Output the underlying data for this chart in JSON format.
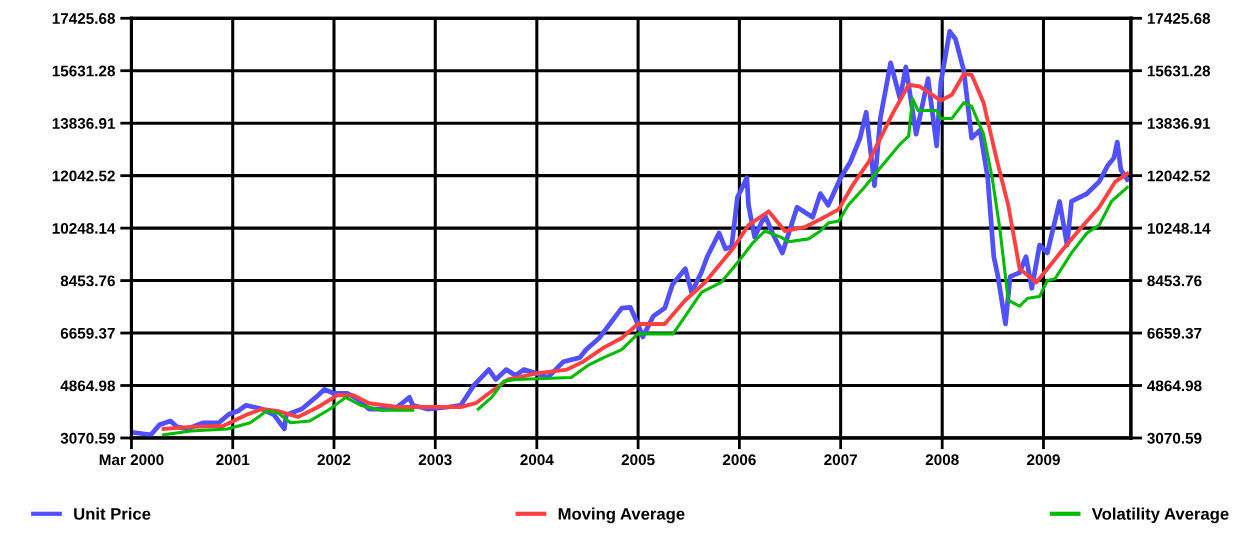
{
  "chart_data": {
    "type": "line",
    "xlim": [
      "2000-03-01",
      "2010-01-10"
    ],
    "xticks": [
      {
        "value": "2000-03-01",
        "label": "Mar 2000"
      },
      {
        "value": "2001-03-01",
        "label": "2001"
      },
      {
        "value": "2002-03-01",
        "label": "2002"
      },
      {
        "value": "2003-03-01",
        "label": "2003"
      },
      {
        "value": "2004-03-01",
        "label": "2004"
      },
      {
        "value": "2005-03-01",
        "label": "2005"
      },
      {
        "value": "2006-03-01",
        "label": "2006"
      },
      {
        "value": "2007-03-01",
        "label": "2007"
      },
      {
        "value": "2008-03-01",
        "label": "2008"
      },
      {
        "value": "2009-03-01",
        "label": "2009"
      }
    ],
    "ylim": [
      3070.59,
      17425.68
    ],
    "yticks": [
      3070.59,
      4864.98,
      6659.37,
      8453.76,
      10248.14,
      12042.52,
      13836.91,
      15631.28,
      17425.68
    ],
    "y2lim": [
      3070.59,
      17425.68
    ],
    "y2ticks": [
      3070.59,
      4864.98,
      6659.37,
      8453.76,
      10248.14,
      12042.52,
      13836.91,
      15631.28,
      17425.68
    ],
    "grid": true,
    "legend": "bottom",
    "marker": "none",
    "line_style": "solid",
    "series": [
      {
        "name": "Unit Price",
        "color": "#5050ff",
        "x": [
          "2000-03-15",
          "2000-05-10",
          "2000-06-10",
          "2000-07-20",
          "2000-08-12",
          "2000-09-18",
          "2000-11-15",
          "2001-01-10",
          "2001-02-15",
          "2001-03-20",
          "2001-04-18",
          "2001-06-15",
          "2001-07-28",
          "2001-09-03",
          "2001-09-10",
          "2001-11-05",
          "2002-01-03",
          "2002-01-25",
          "2002-02-28",
          "2002-04-18",
          "2002-05-25",
          "2002-07-05",
          "2002-09-01",
          "2002-10-15",
          "2002-11-28",
          "2002-12-10",
          "2003-02-01",
          "2003-04-18",
          "2003-06-01",
          "2003-07-18",
          "2003-09-10",
          "2003-10-05",
          "2003-11-12",
          "2003-12-15",
          "2004-01-15",
          "2004-02-28",
          "2004-04-10",
          "2004-06-05",
          "2004-08-03",
          "2004-08-25",
          "2004-10-12",
          "2005-01-01",
          "2005-02-01",
          "2005-02-28",
          "2005-03-18",
          "2005-04-25",
          "2005-06-05",
          "2005-07-03",
          "2005-08-18",
          "2005-09-10",
          "2005-10-15",
          "2005-11-05",
          "2005-12-18",
          "2006-01-10",
          "2006-02-01",
          "2006-02-22",
          "2006-03-28",
          "2006-04-03",
          "2006-04-25",
          "2006-06-01",
          "2006-06-28",
          "2006-08-03",
          "2006-09-25",
          "2006-11-20",
          "2006-12-18",
          "2007-01-15",
          "2007-03-01",
          "2007-04-05",
          "2007-05-10",
          "2007-06-01",
          "2007-07-01",
          "2007-07-22",
          "2007-08-28",
          "2007-10-01",
          "2007-10-22",
          "2007-11-28",
          "2008-01-10",
          "2008-02-10",
          "2008-02-25",
          "2008-03-28",
          "2008-04-18",
          "2008-05-18",
          "2008-06-15",
          "2008-07-15",
          "2008-08-12",
          "2008-09-03",
          "2008-09-18",
          "2008-10-15",
          "2008-11-01",
          "2008-12-05",
          "2008-12-28",
          "2009-01-18",
          "2009-02-15",
          "2009-03-15",
          "2009-04-28",
          "2009-05-25",
          "2009-06-10",
          "2009-08-05",
          "2009-09-18",
          "2009-10-18",
          "2009-11-10",
          "2009-11-22",
          "2009-12-05",
          "2009-12-28"
        ],
        "values": [
          3250,
          3180,
          3520,
          3650,
          3450,
          3380,
          3590,
          3590,
          3880,
          3990,
          4190,
          4060,
          3860,
          3380,
          3860,
          4060,
          4530,
          4730,
          4600,
          4600,
          4400,
          4060,
          4060,
          4130,
          4460,
          4190,
          4060,
          4130,
          4190,
          4870,
          5410,
          5070,
          5410,
          5210,
          5410,
          5280,
          5140,
          5680,
          5820,
          6090,
          6490,
          7510,
          7540,
          6970,
          6530,
          7240,
          7510,
          8320,
          8860,
          8050,
          8730,
          9270,
          10080,
          9540,
          9610,
          11300,
          11970,
          11030,
          9940,
          10690,
          10080,
          9400,
          10960,
          10620,
          11430,
          11030,
          11970,
          12510,
          13330,
          14210,
          11700,
          14000,
          15900,
          14680,
          15760,
          13460,
          15360,
          13060,
          15220,
          16980,
          16710,
          15630,
          13330,
          13600,
          11970,
          9270,
          8590,
          6970,
          8590,
          8730,
          9270,
          8190,
          9670,
          9400,
          11160,
          9670,
          11160,
          11430,
          11840,
          12380,
          12650,
          13190,
          12240,
          11910
        ]
      },
      {
        "name": "Moving Average",
        "color": "#ff4040",
        "x": [
          "2000-06-25",
          "2000-10-01",
          "2001-01-25",
          "2001-04-18",
          "2001-06-15",
          "2001-08-12",
          "2001-10-22",
          "2002-01-03",
          "2002-03-12",
          "2002-05-10",
          "2002-07-05",
          "2002-10-15",
          "2003-03-05",
          "2003-06-01",
          "2003-07-25",
          "2003-09-20",
          "2003-11-18",
          "2004-02-28",
          "2004-06-18",
          "2004-08-15",
          "2004-10-28",
          "2005-01-01",
          "2005-02-28",
          "2005-06-05",
          "2005-08-18",
          "2005-10-28",
          "2006-02-05",
          "2006-04-03",
          "2006-06-15",
          "2006-08-12",
          "2006-10-22",
          "2006-12-18",
          "2007-02-22",
          "2007-04-12",
          "2007-06-10",
          "2007-09-03",
          "2007-11-01",
          "2007-12-12",
          "2008-02-25",
          "2008-04-05",
          "2008-05-18",
          "2008-06-15",
          "2008-07-28",
          "2008-09-12",
          "2008-10-25",
          "2008-12-05",
          "2009-02-03",
          "2009-03-15",
          "2009-05-12",
          "2009-07-10",
          "2009-09-18",
          "2009-11-15",
          "2009-12-28"
        ],
        "values": [
          3380,
          3450,
          3480,
          3860,
          4060,
          3990,
          3790,
          4130,
          4530,
          4530,
          4260,
          4130,
          4130,
          4130,
          4260,
          4670,
          5070,
          5280,
          5410,
          5680,
          6160,
          6490,
          6970,
          6970,
          7780,
          8390,
          9540,
          10350,
          10820,
          10150,
          10280,
          10550,
          10890,
          11700,
          12510,
          14140,
          15150,
          15090,
          14610,
          14810,
          15520,
          15490,
          14540,
          12650,
          11030,
          8860,
          8390,
          8860,
          9540,
          10210,
          10960,
          11840,
          12110
        ]
      },
      {
        "name": "Volatility Average",
        "color": "#00bb00",
        "x": [
          "2000-06-25",
          "2000-10-01",
          "2001-02-10",
          "2001-05-03",
          "2001-07-01",
          "2001-08-12",
          "2001-09-25",
          "2001-12-03",
          "2002-02-15",
          "2002-04-12",
          "2002-06-05",
          "2002-08-18",
          "2002-12-10",
          "2003-03-01",
          "2003-08-03",
          "2003-09-20",
          "2003-11-03",
          "2003-12-15",
          "2004-07-03",
          "2004-09-01",
          "2004-10-28",
          "2005-01-01",
          "2005-02-28",
          "2005-07-05",
          "2005-08-18",
          "2005-10-15",
          "2005-12-25",
          "2006-02-22",
          "2006-04-18",
          "2006-06-01",
          "2006-07-28",
          "2006-08-25",
          "2006-11-05",
          "2006-12-18",
          "2007-01-15",
          "2007-02-22",
          "2007-03-28",
          "2007-05-25",
          "2007-07-22",
          "2007-10-01",
          "2007-11-01",
          "2007-11-15",
          "2007-12-05",
          "2008-02-10",
          "2008-02-25",
          "2008-04-05",
          "2008-05-18",
          "2008-06-15",
          "2008-07-28",
          "2008-08-28",
          "2008-09-25",
          "2008-10-25",
          "2008-12-05",
          "2009-01-03",
          "2009-02-15",
          "2009-03-15",
          "2009-04-12",
          "2009-06-10",
          "2009-08-05",
          "2009-09-18",
          "2009-11-01",
          "2009-12-28"
        ],
        "values": [
          3180,
          3310,
          3380,
          3590,
          3990,
          3920,
          3590,
          3650,
          4060,
          4460,
          4190,
          4020,
          4020,
          null,
          4060,
          4460,
          5010,
          5070,
          5140,
          5550,
          5820,
          6090,
          6630,
          6630,
          7240,
          8050,
          8390,
          9060,
          9740,
          10150,
          9940,
          9780,
          9880,
          10150,
          10420,
          10490,
          11030,
          11640,
          12310,
          13120,
          13390,
          14680,
          14270,
          14270,
          14000,
          14000,
          14540,
          14410,
          13460,
          11970,
          10210,
          7780,
          7580,
          7850,
          7910,
          8460,
          8520,
          9400,
          10080,
          10350,
          11160,
          11640
        ]
      }
    ]
  }
}
